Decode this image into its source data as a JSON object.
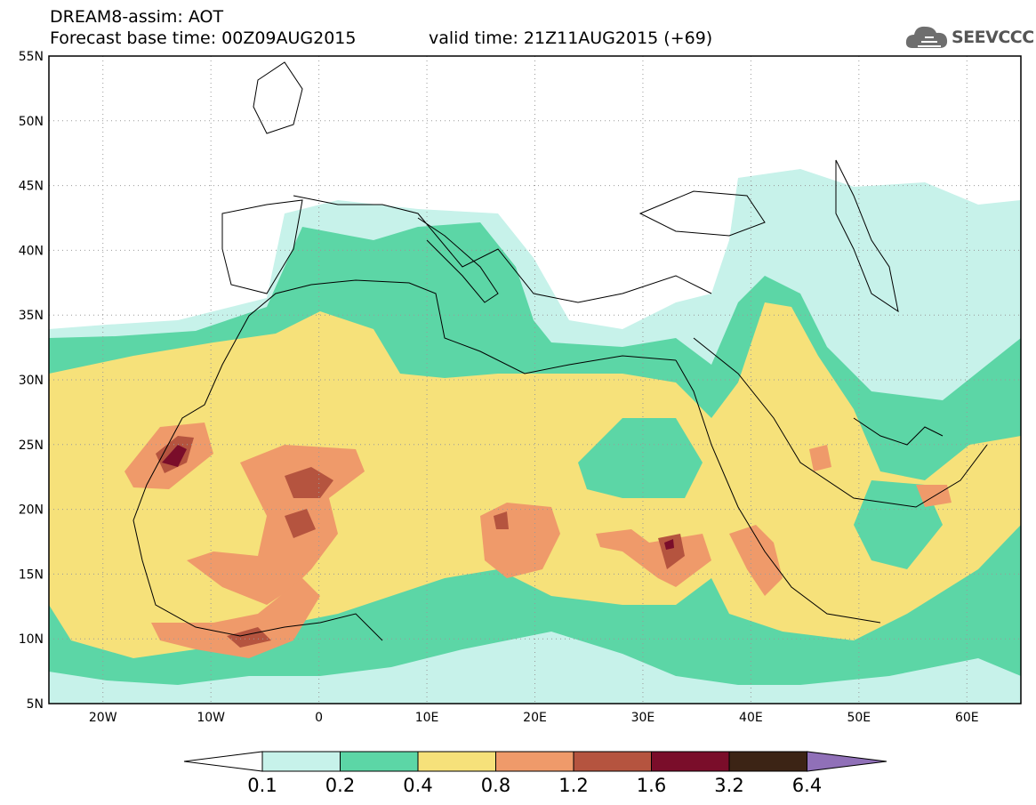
{
  "header": {
    "line1": "DREAM8-assim: AOT",
    "line2_left": "Forecast base time: 00Z09AUG2015",
    "line2_right": "valid time: 21Z11AUG2015 (+69)"
  },
  "logo": {
    "text": "SEEVCCC",
    "icon": "cloud-icon"
  },
  "map": {
    "lon_range": [
      -25,
      65
    ],
    "lat_range": [
      5,
      55
    ],
    "lat_labels": [
      "5N",
      "10N",
      "15N",
      "20N",
      "25N",
      "30N",
      "35N",
      "40N",
      "45N",
      "50N",
      "55N"
    ],
    "lon_labels": [
      "20W",
      "10W",
      "0",
      "10E",
      "20E",
      "30E",
      "40E",
      "50E",
      "60E"
    ],
    "lat_values": [
      5,
      10,
      15,
      20,
      25,
      30,
      35,
      40,
      45,
      50,
      55
    ],
    "lon_values": [
      -20,
      -10,
      0,
      10,
      20,
      30,
      40,
      50,
      60
    ],
    "gridlines": "dotted"
  },
  "colorbar": {
    "labels": [
      "0.1",
      "0.2",
      "0.4",
      "0.8",
      "1.2",
      "1.6",
      "3.2",
      "6.4"
    ],
    "colors": [
      "#c7f2ea",
      "#5cd6a6",
      "#f6e17a",
      "#ef9a6a",
      "#b5543f",
      "#7a0d2a",
      "#3c2415"
    ],
    "under_color": "#ffffff",
    "over_color": "#9070b8"
  }
}
